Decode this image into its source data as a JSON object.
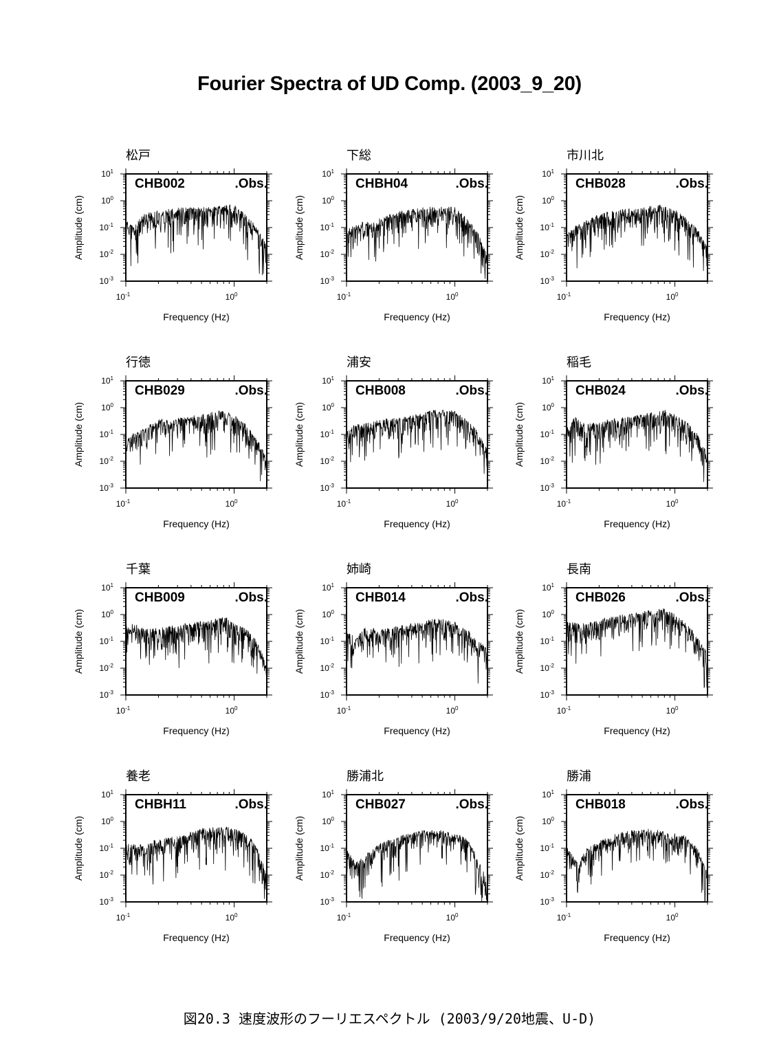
{
  "title": "Fourier Spectra of UD Comp. (2003_9_20)",
  "caption": "図20.3 速度波形のフーリエスペクトル (2003/9/20地震、U-D)",
  "chart_data": [
    {
      "type": "line",
      "station_name": "松戸",
      "code": "CHB002",
      "tag": ".Obs.",
      "xlabel": "Frequency (Hz)",
      "ylabel": "Amplitude (cm)",
      "xscale": "log",
      "yscale": "log",
      "xlim": [
        0.1,
        2
      ],
      "ylim": [
        0.001,
        10
      ],
      "x_ticks": [
        "10-1",
        "100"
      ],
      "y_ticks": [
        "10-3",
        "10-2",
        "10-1",
        "100",
        "101"
      ],
      "seed": 11,
      "profile": [
        [
          0.1,
          0.1
        ],
        [
          0.12,
          0.06
        ],
        [
          0.15,
          0.2
        ],
        [
          0.2,
          0.22
        ],
        [
          0.3,
          0.3
        ],
        [
          0.5,
          0.3
        ],
        [
          0.8,
          0.35
        ],
        [
          1.0,
          0.4
        ],
        [
          1.3,
          0.15
        ],
        [
          1.6,
          0.06
        ],
        [
          2.0,
          0.012
        ]
      ]
    },
    {
      "type": "line",
      "station_name": "下総",
      "code": "CHBH04",
      "tag": ".Obs.",
      "xlabel": "Frequency (Hz)",
      "ylabel": "Amplitude (cm)",
      "xscale": "log",
      "yscale": "log",
      "xlim": [
        0.1,
        2
      ],
      "ylim": [
        0.001,
        10
      ],
      "x_ticks": [
        "10-1",
        "100"
      ],
      "y_ticks": [
        "10-3",
        "10-2",
        "10-1",
        "100",
        "101"
      ],
      "seed": 23,
      "profile": [
        [
          0.1,
          0.045
        ],
        [
          0.13,
          0.08
        ],
        [
          0.18,
          0.1
        ],
        [
          0.3,
          0.22
        ],
        [
          0.5,
          0.3
        ],
        [
          0.8,
          0.35
        ],
        [
          1.0,
          0.3
        ],
        [
          1.3,
          0.12
        ],
        [
          1.6,
          0.04
        ],
        [
          2.0,
          0.005
        ]
      ]
    },
    {
      "type": "line",
      "station_name": "市川北",
      "code": "CHB028",
      "tag": ".Obs.",
      "xlabel": "Frequency (Hz)",
      "ylabel": "Amplitude (cm)",
      "xscale": "log",
      "yscale": "log",
      "xlim": [
        0.1,
        2
      ],
      "ylim": [
        0.001,
        10
      ],
      "x_ticks": [
        "10-1",
        "100"
      ],
      "y_ticks": [
        "10-3",
        "10-2",
        "10-1",
        "100",
        "101"
      ],
      "seed": 37,
      "profile": [
        [
          0.1,
          0.03
        ],
        [
          0.13,
          0.08
        ],
        [
          0.2,
          0.18
        ],
        [
          0.3,
          0.25
        ],
        [
          0.5,
          0.3
        ],
        [
          0.7,
          0.4
        ],
        [
          1.0,
          0.25
        ],
        [
          1.3,
          0.12
        ],
        [
          1.6,
          0.05
        ],
        [
          2.0,
          0.01
        ]
      ]
    },
    {
      "type": "line",
      "station_name": "行徳",
      "code": "CHB029",
      "tag": ".Obs.",
      "xlabel": "Frequency (Hz)",
      "ylabel": "Amplitude (cm)",
      "xscale": "log",
      "yscale": "log",
      "xlim": [
        0.1,
        2
      ],
      "ylim": [
        0.001,
        10
      ],
      "x_ticks": [
        "10-1",
        "100"
      ],
      "y_ticks": [
        "10-3",
        "10-2",
        "10-1",
        "100",
        "101"
      ],
      "seed": 41,
      "profile": [
        [
          0.1,
          0.04
        ],
        [
          0.13,
          0.07
        ],
        [
          0.2,
          0.2
        ],
        [
          0.3,
          0.22
        ],
        [
          0.5,
          0.3
        ],
        [
          0.8,
          0.45
        ],
        [
          1.0,
          0.3
        ],
        [
          1.3,
          0.12
        ],
        [
          1.6,
          0.04
        ],
        [
          2.0,
          0.008
        ]
      ]
    },
    {
      "type": "line",
      "station_name": "浦安",
      "code": "CHB008",
      "tag": ".Obs.",
      "xlabel": "Frequency (Hz)",
      "ylabel": "Amplitude (cm)",
      "xscale": "log",
      "yscale": "log",
      "xlim": [
        0.1,
        2
      ],
      "ylim": [
        0.001,
        10
      ],
      "x_ticks": [
        "10-1",
        "100"
      ],
      "y_ticks": [
        "10-3",
        "10-2",
        "10-1",
        "100",
        "101"
      ],
      "seed": 53,
      "profile": [
        [
          0.1,
          0.1
        ],
        [
          0.15,
          0.15
        ],
        [
          0.2,
          0.2
        ],
        [
          0.3,
          0.22
        ],
        [
          0.5,
          0.35
        ],
        [
          0.7,
          0.5
        ],
        [
          1.0,
          0.4
        ],
        [
          1.3,
          0.2
        ],
        [
          1.6,
          0.08
        ],
        [
          2.0,
          0.015
        ]
      ]
    },
    {
      "type": "line",
      "station_name": "稲毛",
      "code": "CHB024",
      "tag": ".Obs.",
      "xlabel": "Frequency (Hz)",
      "ylabel": "Amplitude (cm)",
      "xscale": "log",
      "yscale": "log",
      "xlim": [
        0.1,
        2
      ],
      "ylim": [
        0.001,
        10
      ],
      "x_ticks": [
        "10-1",
        "100"
      ],
      "y_ticks": [
        "10-3",
        "10-2",
        "10-1",
        "100",
        "101"
      ],
      "seed": 67,
      "profile": [
        [
          0.1,
          0.1
        ],
        [
          0.12,
          0.25
        ],
        [
          0.15,
          0.12
        ],
        [
          0.2,
          0.18
        ],
        [
          0.3,
          0.22
        ],
        [
          0.5,
          0.3
        ],
        [
          0.8,
          0.45
        ],
        [
          1.0,
          0.3
        ],
        [
          1.3,
          0.15
        ],
        [
          1.6,
          0.06
        ],
        [
          2.0,
          0.012
        ]
      ]
    },
    {
      "type": "line",
      "station_name": "千葉",
      "code": "CHB009",
      "tag": ".Obs.",
      "xlabel": "Frequency (Hz)",
      "ylabel": "Amplitude (cm)",
      "xscale": "log",
      "yscale": "log",
      "xlim": [
        0.1,
        2
      ],
      "ylim": [
        0.001,
        10
      ],
      "x_ticks": [
        "10-1",
        "100"
      ],
      "y_ticks": [
        "10-3",
        "10-2",
        "10-1",
        "100",
        "101"
      ],
      "seed": 71,
      "profile": [
        [
          0.1,
          0.2
        ],
        [
          0.12,
          0.25
        ],
        [
          0.15,
          0.15
        ],
        [
          0.2,
          0.18
        ],
        [
          0.3,
          0.22
        ],
        [
          0.5,
          0.3
        ],
        [
          0.8,
          0.45
        ],
        [
          1.0,
          0.3
        ],
        [
          1.3,
          0.15
        ],
        [
          1.6,
          0.06
        ],
        [
          2.0,
          0.008
        ]
      ]
    },
    {
      "type": "line",
      "station_name": "姉崎",
      "code": "CHB014",
      "tag": ".Obs.",
      "xlabel": "Frequency (Hz)",
      "ylabel": "Amplitude (cm)",
      "xscale": "log",
      "yscale": "log",
      "xlim": [
        0.1,
        2
      ],
      "ylim": [
        0.001,
        10
      ],
      "x_ticks": [
        "10-1",
        "100"
      ],
      "y_ticks": [
        "10-3",
        "10-2",
        "10-1",
        "100",
        "101"
      ],
      "seed": 83,
      "profile": [
        [
          0.1,
          0.15
        ],
        [
          0.12,
          0.07
        ],
        [
          0.15,
          0.18
        ],
        [
          0.2,
          0.15
        ],
        [
          0.3,
          0.2
        ],
        [
          0.5,
          0.3
        ],
        [
          0.7,
          0.4
        ],
        [
          1.0,
          0.3
        ],
        [
          1.3,
          0.15
        ],
        [
          1.6,
          0.06
        ],
        [
          2.0,
          0.03
        ]
      ]
    },
    {
      "type": "line",
      "station_name": "長南",
      "code": "CHB026",
      "tag": ".Obs.",
      "xlabel": "Frequency (Hz)",
      "ylabel": "Amplitude (cm)",
      "xscale": "log",
      "yscale": "log",
      "xlim": [
        0.1,
        2
      ],
      "ylim": [
        0.001,
        10
      ],
      "x_ticks": [
        "10-1",
        "100"
      ],
      "y_ticks": [
        "10-3",
        "10-2",
        "10-1",
        "100",
        "101"
      ],
      "seed": 97,
      "profile": [
        [
          0.1,
          0.3
        ],
        [
          0.15,
          0.25
        ],
        [
          0.2,
          0.35
        ],
        [
          0.3,
          0.5
        ],
        [
          0.5,
          0.7
        ],
        [
          0.8,
          0.9
        ],
        [
          1.0,
          0.6
        ],
        [
          1.3,
          0.25
        ],
        [
          1.6,
          0.08
        ],
        [
          2.0,
          0.02
        ]
      ]
    },
    {
      "type": "line",
      "station_name": "養老",
      "code": "CHBH11",
      "tag": ".Obs.",
      "xlabel": "Frequency (Hz)",
      "ylabel": "Amplitude (cm)",
      "xscale": "log",
      "yscale": "log",
      "xlim": [
        0.1,
        2
      ],
      "ylim": [
        0.001,
        10
      ],
      "x_ticks": [
        "10-1",
        "100"
      ],
      "y_ticks": [
        "10-3",
        "10-2",
        "10-1",
        "100",
        "101"
      ],
      "seed": 101,
      "profile": [
        [
          0.1,
          0.08
        ],
        [
          0.15,
          0.08
        ],
        [
          0.2,
          0.12
        ],
        [
          0.3,
          0.15
        ],
        [
          0.5,
          0.3
        ],
        [
          0.8,
          0.35
        ],
        [
          1.0,
          0.3
        ],
        [
          1.3,
          0.18
        ],
        [
          1.6,
          0.07
        ],
        [
          2.0,
          0.006
        ]
      ]
    },
    {
      "type": "line",
      "station_name": "勝浦北",
      "code": "CHB027",
      "tag": ".Obs.",
      "xlabel": "Frequency (Hz)",
      "ylabel": "Amplitude (cm)",
      "xscale": "log",
      "yscale": "log",
      "xlim": [
        0.1,
        2
      ],
      "ylim": [
        0.001,
        10
      ],
      "x_ticks": [
        "10-1",
        "100"
      ],
      "y_ticks": [
        "10-3",
        "10-2",
        "10-1",
        "100",
        "101"
      ],
      "seed": 113,
      "profile": [
        [
          0.1,
          0.06
        ],
        [
          0.12,
          0.015
        ],
        [
          0.15,
          0.03
        ],
        [
          0.2,
          0.08
        ],
        [
          0.3,
          0.15
        ],
        [
          0.5,
          0.25
        ],
        [
          0.8,
          0.25
        ],
        [
          1.0,
          0.2
        ],
        [
          1.3,
          0.12
        ],
        [
          1.6,
          0.03
        ],
        [
          2.0,
          0.003
        ]
      ]
    },
    {
      "type": "line",
      "station_name": "勝浦",
      "code": "CHB018",
      "tag": ".Obs.",
      "xlabel": "Frequency (Hz)",
      "ylabel": "Amplitude (cm)",
      "xscale": "log",
      "yscale": "log",
      "xlim": [
        0.1,
        2
      ],
      "ylim": [
        0.001,
        10
      ],
      "x_ticks": [
        "10-1",
        "100"
      ],
      "y_ticks": [
        "10-3",
        "10-2",
        "10-1",
        "100",
        "101"
      ],
      "seed": 127,
      "profile": [
        [
          0.1,
          0.06
        ],
        [
          0.13,
          0.015
        ],
        [
          0.15,
          0.05
        ],
        [
          0.2,
          0.1
        ],
        [
          0.3,
          0.2
        ],
        [
          0.5,
          0.3
        ],
        [
          0.8,
          0.25
        ],
        [
          1.0,
          0.2
        ],
        [
          1.3,
          0.15
        ],
        [
          1.6,
          0.06
        ],
        [
          2.0,
          0.006
        ]
      ]
    }
  ]
}
